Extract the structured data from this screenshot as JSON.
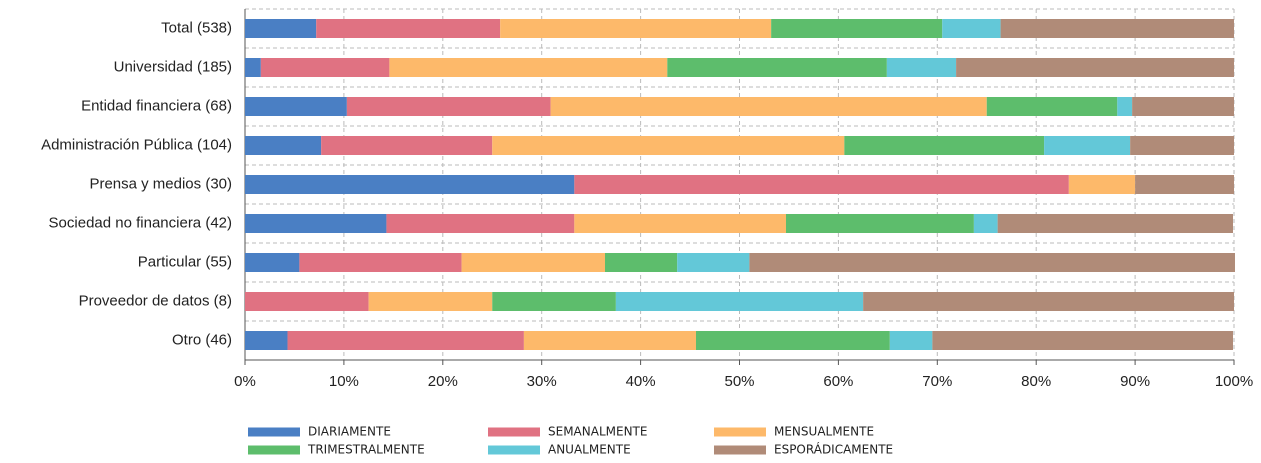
{
  "chart_data": {
    "type": "stacked_bar_horizontal",
    "categories": [
      "Total (538)",
      "Universidad (185)",
      "Entidad financiera (68)",
      "Administración Pública (104)",
      "Prensa y medios (30)",
      "Sociedad no financiera (42)",
      "Particular (55)",
      "Proveedor de datos (8)",
      "Otro (46)"
    ],
    "series": [
      {
        "name": "DIARIAMENTE",
        "color": "#4a7fc4",
        "values": [
          7.2,
          1.6,
          10.3,
          7.7,
          33.3,
          14.3,
          5.5,
          0,
          4.3
        ]
      },
      {
        "name": "SEMANALMENTE",
        "color": "#e07282",
        "values": [
          18.6,
          13.0,
          20.6,
          17.3,
          50.0,
          19.0,
          16.4,
          12.5,
          23.9
        ]
      },
      {
        "name": "MENSUALMENTE",
        "color": "#fdb96a",
        "values": [
          27.4,
          28.1,
          44.1,
          35.6,
          6.7,
          21.4,
          14.5,
          12.5,
          17.4
        ]
      },
      {
        "name": "TRIMESTRALMENTE",
        "color": "#5dbd6c",
        "values": [
          17.3,
          22.2,
          13.2,
          20.2,
          0,
          19.0,
          7.3,
          12.5,
          19.6
        ]
      },
      {
        "name": "ANUALMENTE",
        "color": "#63c8d8",
        "values": [
          5.9,
          7.0,
          1.5,
          8.7,
          0,
          2.4,
          7.3,
          25.0,
          4.3
        ]
      },
      {
        "name": "ESPORÁDICAMENTE",
        "color": "#b08b78",
        "values": [
          23.6,
          28.1,
          10.3,
          10.5,
          10.0,
          23.8,
          49.1,
          37.5,
          30.4
        ]
      }
    ],
    "xlim": [
      0,
      100
    ],
    "xticks": [
      {
        "value": 0,
        "label": "0%"
      },
      {
        "value": 10,
        "label": "10%"
      },
      {
        "value": 20,
        "label": "20%"
      },
      {
        "value": 30,
        "label": "30%"
      },
      {
        "value": 40,
        "label": "40%"
      },
      {
        "value": 50,
        "label": "50%"
      },
      {
        "value": 60,
        "label": "60%"
      },
      {
        "value": 70,
        "label": "70%"
      },
      {
        "value": 80,
        "label": "80%"
      },
      {
        "value": 90,
        "label": "90%"
      },
      {
        "value": 100,
        "label": "100%"
      }
    ],
    "grid": true,
    "legend": "bottom"
  }
}
